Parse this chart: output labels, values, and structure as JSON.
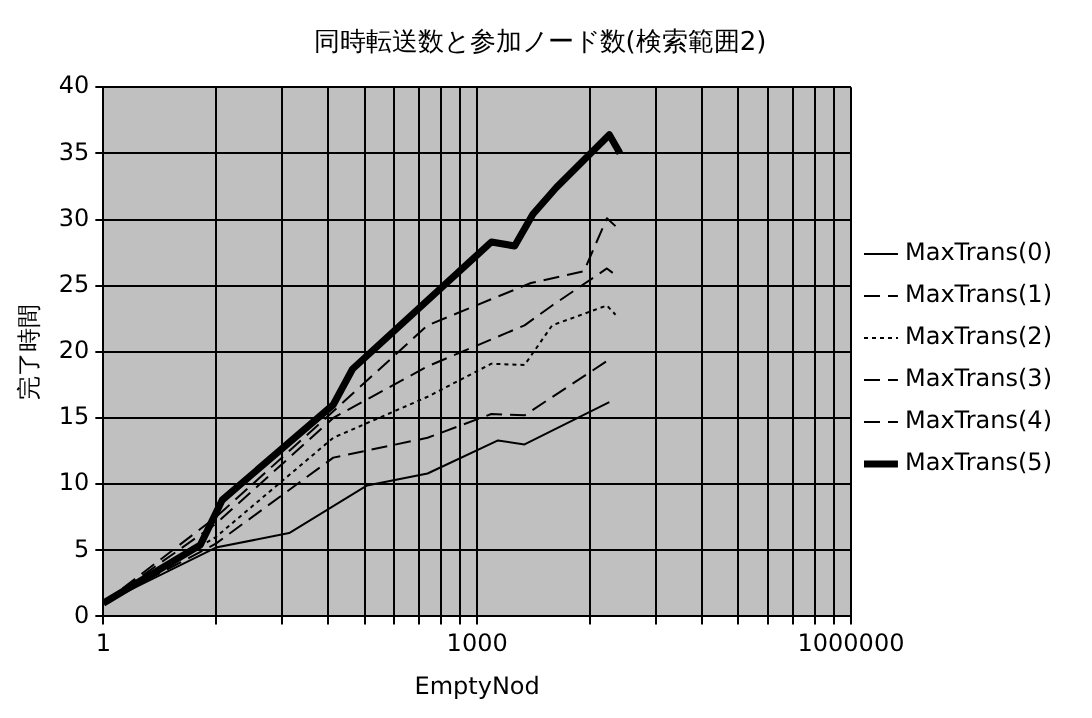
{
  "chart_data": {
    "type": "line",
    "title": "同時転送数と参加ノード数(検索範囲2)",
    "xlabel": "EmptyNod",
    "ylabel": "完了時間",
    "log": "x",
    "xlim": [
      1,
      1000000
    ],
    "ylim": [
      0,
      40
    ],
    "xticks": [
      1,
      {
        "value": 8,
        "label": null
      },
      {
        "value": 27,
        "label": null
      },
      {
        "value": 64,
        "label": null
      },
      {
        "value": 125,
        "label": null
      },
      {
        "value": 216,
        "label": null
      },
      {
        "value": 343,
        "label": null
      },
      {
        "value": 512,
        "label": null
      },
      {
        "value": 729,
        "label": null
      },
      1000,
      {
        "value": 8000,
        "label": null
      },
      {
        "value": 27000,
        "label": null
      },
      {
        "value": 64000,
        "label": null
      },
      {
        "value": 125000,
        "label": null
      },
      {
        "value": 216000,
        "label": null
      },
      {
        "value": 343000,
        "label": null
      },
      {
        "value": 512000,
        "label": null
      },
      {
        "value": 729000,
        "label": null
      },
      1000000
    ],
    "yticks": [
      0,
      5,
      10,
      15,
      20,
      25,
      30,
      35,
      40
    ],
    "grid": true,
    "legend": "right",
    "marker": "none",
    "series": [
      {
        "name": "MaxTrans(0)",
        "color": "#000000",
        "line_style": "solid",
        "x": [
          1,
          8,
          31,
          131,
          400,
          1470,
          2400,
          11500
        ],
        "values": [
          1,
          5.2,
          6.3,
          9.9,
          10.8,
          13.3,
          13,
          16.2
        ]
      },
      {
        "name": "MaxTrans(1)",
        "color": "#000000",
        "line_style": "dashed",
        "x": [
          1,
          8,
          70,
          400,
          1300,
          2400,
          11000
        ],
        "values": [
          1,
          5.5,
          12,
          13.5,
          15.3,
          15.2,
          19.3
        ]
      },
      {
        "name": "MaxTrans(2)",
        "color": "#000000",
        "line_style": "dotted",
        "x": [
          1,
          8,
          70,
          400,
          1300,
          2400,
          4000,
          11000,
          12900
        ],
        "values": [
          1,
          6,
          13.5,
          16.6,
          19.1,
          19,
          22,
          23.5,
          22.8
        ]
      },
      {
        "name": "MaxTrans(3)",
        "color": "#000000",
        "line_style": "dashed",
        "x": [
          1,
          8,
          70,
          400,
          2400,
          4000,
          11000,
          12900
        ],
        "values": [
          1,
          7,
          15,
          18.9,
          22,
          23.5,
          26.3,
          25.8
        ]
      },
      {
        "name": "MaxTrans(4)",
        "color": "#000000",
        "line_style": "dashed",
        "x": [
          1,
          8,
          70,
          400,
          2700,
          7200,
          11000,
          12900
        ],
        "values": [
          1,
          7.5,
          15.5,
          22,
          25.2,
          26.1,
          30.1,
          29.5
        ]
      },
      {
        "name": "MaxTrans(5)",
        "color": "#000000",
        "line_style": "solid",
        "x": [
          1,
          6,
          9,
          70,
          100,
          1300,
          2000,
          2800,
          4300,
          11500,
          14000
        ],
        "values": [
          1,
          5.4,
          8.8,
          16,
          18.7,
          28.3,
          28,
          30.4,
          32.4,
          36.4,
          35
        ]
      }
    ]
  }
}
